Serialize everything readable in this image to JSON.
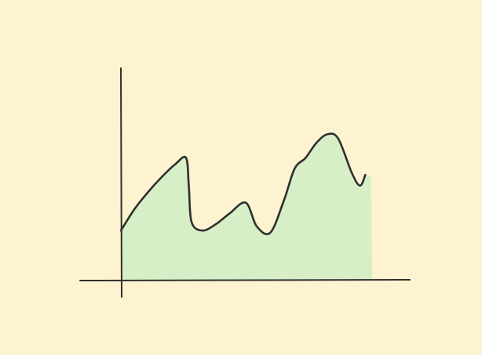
{
  "colors": {
    "background": "#fdf3d0",
    "area_fill": "#d7efc6",
    "line": "#2f2f2f",
    "axis": "#2f2f2f"
  },
  "chart_data": {
    "type": "area",
    "style": "hand-drawn sketch",
    "title": "",
    "xlabel": "",
    "ylabel": "",
    "xlim": [
      0,
      100
    ],
    "ylim": [
      0,
      100
    ],
    "grid": false,
    "legend": "none",
    "tick_labels": false,
    "series": [
      {
        "x": [
          0,
          5,
          10,
          15,
          20,
          24,
          25,
          26,
          30,
          35,
          40,
          46,
          50,
          55,
          60,
          64,
          68,
          72,
          76,
          80,
          85,
          88,
          90
        ],
        "y": [
          23,
          33,
          41,
          48,
          54,
          57,
          44,
          27,
          23,
          26,
          31,
          36,
          25,
          22,
          37,
          52,
          57,
          64,
          68,
          66,
          50,
          44,
          49
        ]
      }
    ],
    "fill_extends_to_x": 92
  }
}
